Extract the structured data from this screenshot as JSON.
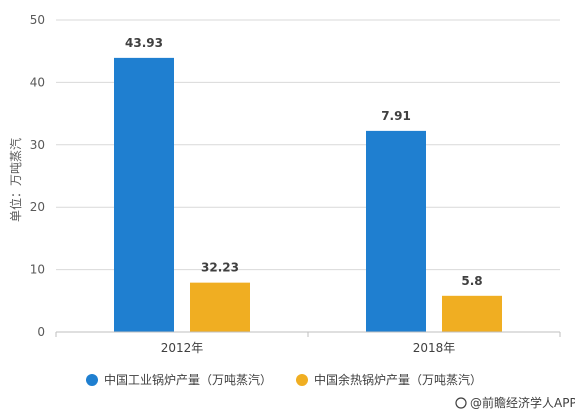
{
  "chart_data": {
    "type": "bar",
    "categories": [
      "2012年",
      "2018年"
    ],
    "series": [
      {
        "name": "中国工业锅炉产量（万吨蒸汽）",
        "values": [
          43.93,
          32.23
        ],
        "color": "#1f7fd0"
      },
      {
        "name": "中国余热锅炉产量（万吨蒸汽）",
        "values": [
          7.91,
          5.8
        ],
        "color": "#f0ae22"
      }
    ],
    "data_labels": [
      "43.93",
      "32.23",
      "7.91",
      "5.8"
    ],
    "ylabel": "单位：万吨蒸汽",
    "ylim": [
      0,
      50
    ],
    "yticks": [
      0,
      10,
      20,
      30,
      40,
      50
    ],
    "grid": true,
    "legend_position": "bottom"
  },
  "credit": "@前瞻经济学人APP"
}
